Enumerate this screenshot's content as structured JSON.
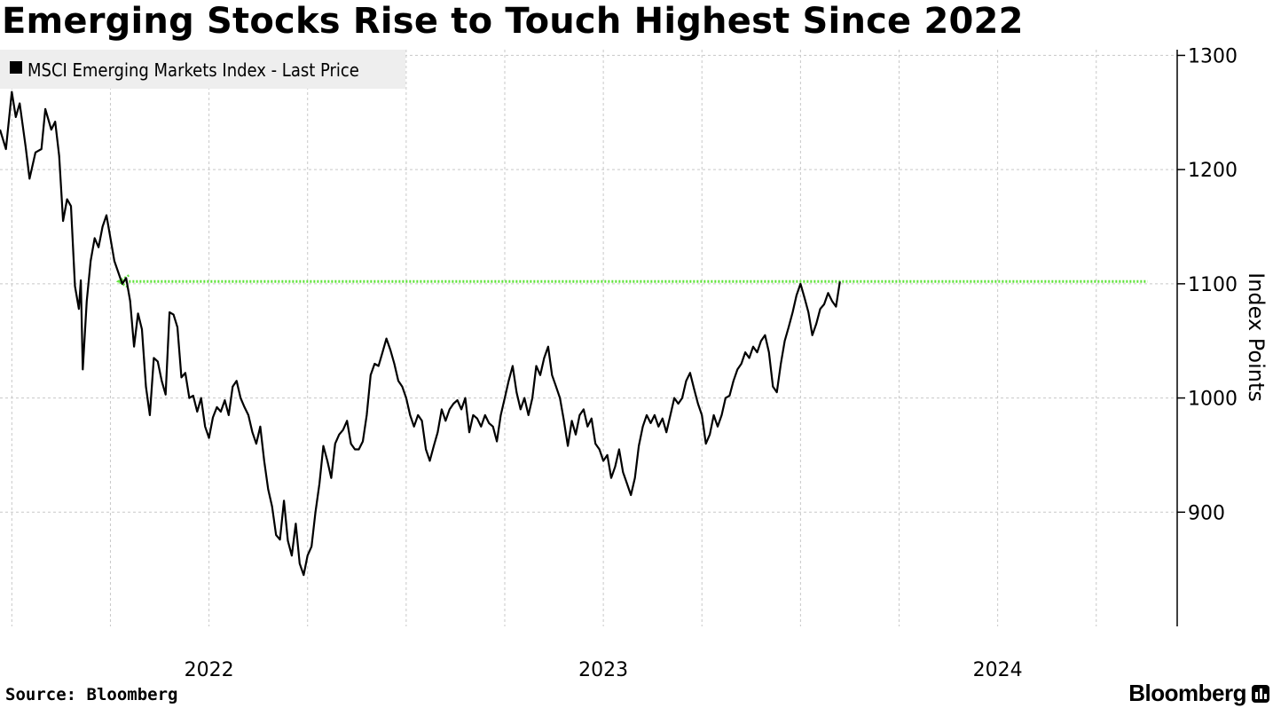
{
  "title": "Emerging Stocks Rise to Touch Highest Since 2022",
  "source": "Source: Bloomberg",
  "brand": "Bloomberg",
  "colors": {
    "line": "#000000",
    "reference": "#5fe33a",
    "grid": "#c8c8c8",
    "legend_bg": "#eeeeee"
  },
  "chart_data": {
    "type": "line",
    "legend": [
      "MSCI Emerging Markets Index - Last Price"
    ],
    "ylabel": "Index Points",
    "yticks": [
      900,
      1000,
      1100,
      1200,
      1300
    ],
    "ylim": [
      800,
      1305
    ],
    "x_range": [
      2021.47,
      2024.39
    ],
    "xticks": [
      {
        "value": 2022,
        "label": "2022"
      },
      {
        "value": 2023,
        "label": "2023"
      },
      {
        "value": 2024,
        "label": "2024"
      }
    ],
    "reference_line": {
      "y": 1102,
      "x_start": 2021.77,
      "x_end": 2024.38
    },
    "series": [
      {
        "name": "MSCI Emerging Markets Index - Last Price",
        "points": [
          [
            2021.47,
            1235
          ],
          [
            2021.485,
            1218
          ],
          [
            2021.5,
            1268
          ],
          [
            2021.51,
            1246
          ],
          [
            2021.52,
            1258
          ],
          [
            2021.535,
            1220
          ],
          [
            2021.545,
            1192
          ],
          [
            2021.56,
            1215
          ],
          [
            2021.575,
            1218
          ],
          [
            2021.585,
            1253
          ],
          [
            2021.6,
            1235
          ],
          [
            2021.61,
            1242
          ],
          [
            2021.62,
            1212
          ],
          [
            2021.63,
            1155
          ],
          [
            2021.64,
            1174
          ],
          [
            2021.65,
            1168
          ],
          [
            2021.66,
            1098
          ],
          [
            2021.67,
            1078
          ],
          [
            2021.675,
            1103
          ],
          [
            2021.68,
            1025
          ],
          [
            2021.69,
            1085
          ],
          [
            2021.7,
            1120
          ],
          [
            2021.71,
            1140
          ],
          [
            2021.72,
            1132
          ],
          [
            2021.73,
            1150
          ],
          [
            2021.74,
            1160
          ],
          [
            2021.75,
            1140
          ],
          [
            2021.76,
            1120
          ],
          [
            2021.78,
            1100
          ],
          [
            2021.79,
            1105
          ],
          [
            2021.8,
            1085
          ],
          [
            2021.81,
            1045
          ],
          [
            2021.82,
            1074
          ],
          [
            2021.83,
            1060
          ],
          [
            2021.84,
            1010
          ],
          [
            2021.85,
            985
          ],
          [
            2021.86,
            1035
          ],
          [
            2021.87,
            1032
          ],
          [
            2021.88,
            1015
          ],
          [
            2021.89,
            1003
          ],
          [
            2021.9,
            1075
          ],
          [
            2021.91,
            1073
          ],
          [
            2021.92,
            1062
          ],
          [
            2021.93,
            1018
          ],
          [
            2021.94,
            1022
          ],
          [
            2021.95,
            1000
          ],
          [
            2021.96,
            1002
          ],
          [
            2021.97,
            988
          ],
          [
            2021.98,
            1000
          ],
          [
            2021.99,
            975
          ],
          [
            2022.0,
            965
          ],
          [
            2022.01,
            983
          ],
          [
            2022.02,
            992
          ],
          [
            2022.03,
            988
          ],
          [
            2022.04,
            998
          ],
          [
            2022.05,
            985
          ],
          [
            2022.06,
            1010
          ],
          [
            2022.07,
            1015
          ],
          [
            2022.08,
            1000
          ],
          [
            2022.09,
            992
          ],
          [
            2022.1,
            985
          ],
          [
            2022.11,
            970
          ],
          [
            2022.12,
            960
          ],
          [
            2022.13,
            975
          ],
          [
            2022.14,
            945
          ],
          [
            2022.15,
            920
          ],
          [
            2022.16,
            905
          ],
          [
            2022.17,
            880
          ],
          [
            2022.18,
            876
          ],
          [
            2022.19,
            910
          ],
          [
            2022.2,
            875
          ],
          [
            2022.21,
            862
          ],
          [
            2022.22,
            890
          ],
          [
            2022.23,
            855
          ],
          [
            2022.24,
            845
          ],
          [
            2022.25,
            862
          ],
          [
            2022.26,
            870
          ],
          [
            2022.27,
            900
          ],
          [
            2022.28,
            925
          ],
          [
            2022.29,
            958
          ],
          [
            2022.3,
            945
          ],
          [
            2022.31,
            930
          ],
          [
            2022.32,
            960
          ],
          [
            2022.33,
            968
          ],
          [
            2022.34,
            972
          ],
          [
            2022.35,
            980
          ],
          [
            2022.36,
            960
          ],
          [
            2022.37,
            955
          ],
          [
            2022.38,
            955
          ],
          [
            2022.39,
            962
          ],
          [
            2022.4,
            985
          ],
          [
            2022.41,
            1020
          ],
          [
            2022.42,
            1030
          ],
          [
            2022.43,
            1028
          ],
          [
            2022.44,
            1040
          ],
          [
            2022.45,
            1052
          ],
          [
            2022.46,
            1042
          ],
          [
            2022.47,
            1030
          ],
          [
            2022.48,
            1015
          ],
          [
            2022.49,
            1010
          ],
          [
            2022.5,
            1000
          ],
          [
            2022.51,
            985
          ],
          [
            2022.52,
            975
          ],
          [
            2022.53,
            985
          ],
          [
            2022.54,
            980
          ],
          [
            2022.55,
            955
          ],
          [
            2022.56,
            945
          ],
          [
            2022.57,
            958
          ],
          [
            2022.58,
            970
          ],
          [
            2022.59,
            990
          ],
          [
            2022.6,
            980
          ],
          [
            2022.61,
            990
          ],
          [
            2022.62,
            995
          ],
          [
            2022.63,
            998
          ],
          [
            2022.64,
            990
          ],
          [
            2022.65,
            1000
          ],
          [
            2022.66,
            970
          ],
          [
            2022.67,
            985
          ],
          [
            2022.68,
            982
          ],
          [
            2022.69,
            975
          ],
          [
            2022.7,
            985
          ],
          [
            2022.71,
            978
          ],
          [
            2022.72,
            975
          ],
          [
            2022.73,
            962
          ],
          [
            2022.74,
            985
          ],
          [
            2022.75,
            1000
          ],
          [
            2022.76,
            1015
          ],
          [
            2022.77,
            1028
          ],
          [
            2022.78,
            1005
          ],
          [
            2022.79,
            990
          ],
          [
            2022.8,
            1000
          ],
          [
            2022.81,
            985
          ],
          [
            2022.82,
            1000
          ],
          [
            2022.83,
            1028
          ],
          [
            2022.84,
            1020
          ],
          [
            2022.85,
            1035
          ],
          [
            2022.86,
            1045
          ],
          [
            2022.87,
            1020
          ],
          [
            2022.88,
            1010
          ],
          [
            2022.89,
            1000
          ],
          [
            2022.9,
            980
          ],
          [
            2022.91,
            958
          ],
          [
            2022.92,
            980
          ],
          [
            2022.93,
            968
          ],
          [
            2022.94,
            985
          ],
          [
            2022.95,
            990
          ],
          [
            2022.96,
            975
          ],
          [
            2022.97,
            982
          ],
          [
            2022.98,
            960
          ],
          [
            2022.99,
            955
          ],
          [
            2023.0,
            945
          ],
          [
            2023.01,
            950
          ],
          [
            2023.02,
            930
          ],
          [
            2023.03,
            940
          ],
          [
            2023.04,
            955
          ],
          [
            2023.05,
            935
          ],
          [
            2023.06,
            925
          ],
          [
            2023.07,
            915
          ],
          [
            2023.08,
            930
          ],
          [
            2023.09,
            958
          ],
          [
            2023.1,
            975
          ],
          [
            2023.11,
            985
          ],
          [
            2023.12,
            978
          ],
          [
            2023.13,
            985
          ],
          [
            2023.14,
            975
          ],
          [
            2023.15,
            982
          ],
          [
            2023.16,
            970
          ],
          [
            2023.17,
            985
          ],
          [
            2023.18,
            1000
          ],
          [
            2023.19,
            995
          ],
          [
            2023.2,
            1000
          ],
          [
            2023.21,
            1015
          ],
          [
            2023.22,
            1022
          ],
          [
            2023.23,
            1008
          ],
          [
            2023.24,
            995
          ],
          [
            2023.25,
            985
          ],
          [
            2023.26,
            960
          ],
          [
            2023.27,
            968
          ],
          [
            2023.28,
            985
          ],
          [
            2023.29,
            975
          ],
          [
            2023.3,
            985
          ],
          [
            2023.31,
            1000
          ],
          [
            2023.32,
            1002
          ],
          [
            2023.33,
            1015
          ],
          [
            2023.34,
            1025
          ],
          [
            2023.35,
            1030
          ],
          [
            2023.36,
            1040
          ],
          [
            2023.37,
            1035
          ],
          [
            2023.38,
            1045
          ],
          [
            2023.39,
            1040
          ],
          [
            2023.4,
            1050
          ],
          [
            2023.41,
            1055
          ],
          [
            2023.42,
            1040
          ],
          [
            2023.43,
            1010
          ],
          [
            2023.44,
            1005
          ],
          [
            2023.45,
            1030
          ],
          [
            2023.46,
            1050
          ],
          [
            2023.47,
            1062
          ],
          [
            2023.48,
            1075
          ],
          [
            2023.49,
            1090
          ],
          [
            2023.5,
            1100
          ],
          [
            2023.51,
            1088
          ],
          [
            2023.52,
            1075
          ],
          [
            2023.53,
            1055
          ],
          [
            2023.54,
            1065
          ],
          [
            2023.55,
            1078
          ],
          [
            2023.56,
            1082
          ],
          [
            2023.57,
            1092
          ],
          [
            2023.58,
            1085
          ],
          [
            2023.59,
            1080
          ],
          [
            2023.6,
            1102
          ]
        ]
      }
    ]
  }
}
